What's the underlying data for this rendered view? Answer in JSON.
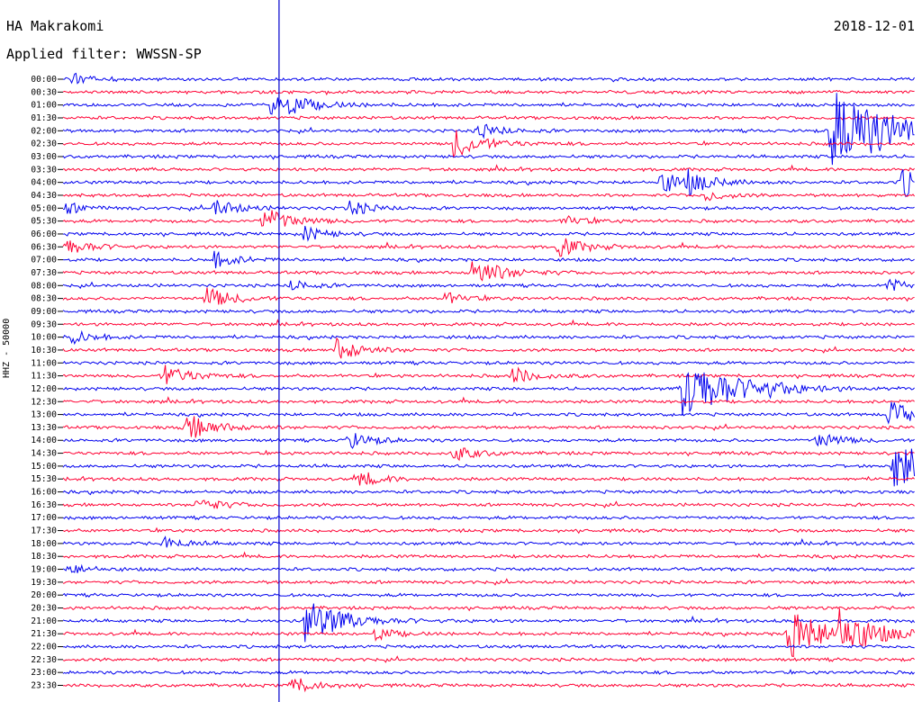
{
  "header": {
    "station": "HA Makrakomi",
    "filter": "Applied filter: WWSSN-SP",
    "date": "2018-12-01"
  },
  "y_axis_label": "HHZ - 50000",
  "colors": {
    "blue": "#0000ee",
    "red": "#ff0033",
    "marker": "#0000cc"
  },
  "chart_data": {
    "type": "line",
    "title": "HA Makrakomi",
    "subtitle": "Applied filter: WWSSN-SP",
    "ylabel": "HHZ - 50000",
    "row_labels": [
      "00:00",
      "00:30",
      "01:00",
      "01:30",
      "02:00",
      "02:30",
      "03:00",
      "03:30",
      "04:00",
      "04:30",
      "05:00",
      "05:30",
      "06:00",
      "06:30",
      "07:00",
      "07:30",
      "08:00",
      "08:30",
      "09:00",
      "09:30",
      "10:00",
      "10:30",
      "11:00",
      "11:30",
      "12:00",
      "12:30",
      "13:00",
      "13:30",
      "14:00",
      "14:30",
      "15:00",
      "15:30",
      "16:00",
      "16:30",
      "17:00",
      "17:30",
      "18:00",
      "18:30",
      "19:00",
      "19:30",
      "20:00",
      "20:30",
      "21:00",
      "21:30",
      "22:00",
      "22:30",
      "23:00",
      "23:30"
    ],
    "row_colors": [
      "blue",
      "red"
    ],
    "row_minutes": 30,
    "time_marker_minute_in_row": 7.6,
    "events": [
      {
        "row": 0,
        "minute": 0.3,
        "amp": 0.5
      },
      {
        "row": 2,
        "minute": 7.3,
        "amp": 1.5
      },
      {
        "row": 4,
        "minute": 14.6,
        "amp": 0.7
      },
      {
        "row": 4,
        "minute": 27.0,
        "amp": 4.0
      },
      {
        "row": 5,
        "minute": 13.7,
        "amp": 1.3
      },
      {
        "row": 8,
        "minute": 21.0,
        "amp": 1.0
      },
      {
        "row": 8,
        "minute": 22.0,
        "amp": 0.8
      },
      {
        "row": 8,
        "minute": 29.5,
        "amp": 1.3
      },
      {
        "row": 9,
        "minute": 22.6,
        "amp": 0.5
      },
      {
        "row": 10,
        "minute": 0.1,
        "amp": 0.5
      },
      {
        "row": 10,
        "minute": 5.3,
        "amp": 0.8
      },
      {
        "row": 10,
        "minute": 10.0,
        "amp": 0.7
      },
      {
        "row": 11,
        "minute": 7.0,
        "amp": 1.2
      },
      {
        "row": 11,
        "minute": 17.6,
        "amp": 0.5
      },
      {
        "row": 12,
        "minute": 8.4,
        "amp": 0.7
      },
      {
        "row": 13,
        "minute": 0.1,
        "amp": 0.8
      },
      {
        "row": 13,
        "minute": 17.4,
        "amp": 0.9
      },
      {
        "row": 14,
        "minute": 5.2,
        "amp": 0.8
      },
      {
        "row": 15,
        "minute": 14.4,
        "amp": 1.3
      },
      {
        "row": 16,
        "minute": 8.0,
        "amp": 0.5
      },
      {
        "row": 16,
        "minute": 29.0,
        "amp": 0.6
      },
      {
        "row": 17,
        "minute": 5.0,
        "amp": 1.0
      },
      {
        "row": 17,
        "minute": 13.3,
        "amp": 0.6
      },
      {
        "row": 20,
        "minute": 0.3,
        "amp": 0.6
      },
      {
        "row": 21,
        "minute": 9.6,
        "amp": 1.0
      },
      {
        "row": 23,
        "minute": 3.5,
        "amp": 1.0
      },
      {
        "row": 23,
        "minute": 15.8,
        "amp": 0.8
      },
      {
        "row": 24,
        "minute": 21.8,
        "amp": 3.0
      },
      {
        "row": 24,
        "minute": 24.4,
        "amp": 0.5
      },
      {
        "row": 26,
        "minute": 29.0,
        "amp": 1.2
      },
      {
        "row": 27,
        "minute": 4.3,
        "amp": 1.2
      },
      {
        "row": 28,
        "minute": 10.0,
        "amp": 0.8
      },
      {
        "row": 28,
        "minute": 26.5,
        "amp": 0.8
      },
      {
        "row": 29,
        "minute": 13.7,
        "amp": 0.7
      },
      {
        "row": 30,
        "minute": 29.2,
        "amp": 2.0
      },
      {
        "row": 31,
        "minute": 10.4,
        "amp": 0.7
      },
      {
        "row": 33,
        "minute": 4.7,
        "amp": 0.7
      },
      {
        "row": 36,
        "minute": 3.5,
        "amp": 0.6
      },
      {
        "row": 38,
        "minute": 0.2,
        "amp": 0.5
      },
      {
        "row": 42,
        "minute": 8.5,
        "amp": 2.0
      },
      {
        "row": 43,
        "minute": 10.9,
        "amp": 0.6
      },
      {
        "row": 43,
        "minute": 25.5,
        "amp": 2.3
      },
      {
        "row": 43,
        "minute": 27.2,
        "amp": 1.8
      },
      {
        "row": 47,
        "minute": 8.0,
        "amp": 0.8
      }
    ]
  }
}
